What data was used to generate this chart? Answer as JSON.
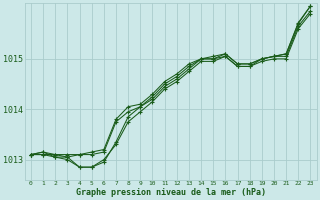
{
  "background_color": "#cce8e8",
  "grid_color": "#aacccc",
  "line_color": "#1a5c1a",
  "text_color": "#1a5c1a",
  "xlabel": "Graphe pression niveau de la mer (hPa)",
  "ylim": [
    1012.6,
    1016.1
  ],
  "xlim": [
    -0.5,
    23.5
  ],
  "yticks": [
    1013,
    1014,
    1015
  ],
  "figsize": [
    3.2,
    2.0
  ],
  "dpi": 100,
  "line1": [
    1013.1,
    1013.1,
    1013.05,
    1013.0,
    1012.85,
    1012.85,
    1012.95,
    1013.35,
    1013.85,
    1014.05,
    1014.2,
    1014.45,
    1014.6,
    1014.8,
    1015.0,
    1015.0,
    1015.05,
    1014.85,
    1014.85,
    1015.0,
    1015.05,
    1015.05,
    1015.65,
    1015.95
  ],
  "line2": [
    1013.1,
    1013.1,
    1013.1,
    1013.05,
    1013.1,
    1013.1,
    1013.15,
    1013.75,
    1013.95,
    1014.05,
    1014.25,
    1014.5,
    1014.65,
    1014.85,
    1015.0,
    1015.0,
    1015.1,
    1014.9,
    1014.9,
    1015.0,
    1015.05,
    1015.1,
    1015.7,
    1016.05
  ],
  "line3": [
    1013.1,
    1013.15,
    1013.05,
    1013.05,
    1012.85,
    1012.85,
    1013.0,
    1013.3,
    1013.75,
    1013.95,
    1014.15,
    1014.4,
    1014.55,
    1014.75,
    1014.95,
    1014.95,
    1015.05,
    1014.85,
    1014.85,
    1014.95,
    1015.0,
    1015.0,
    1015.6,
    1015.9
  ],
  "line4": [
    1013.1,
    1013.15,
    1013.1,
    1013.1,
    1013.1,
    1013.15,
    1013.2,
    1013.8,
    1014.05,
    1014.1,
    1014.3,
    1014.55,
    1014.7,
    1014.9,
    1015.0,
    1015.05,
    1015.1,
    1014.9,
    1014.9,
    1015.0,
    1015.05,
    1015.1,
    1015.72,
    1016.05
  ]
}
